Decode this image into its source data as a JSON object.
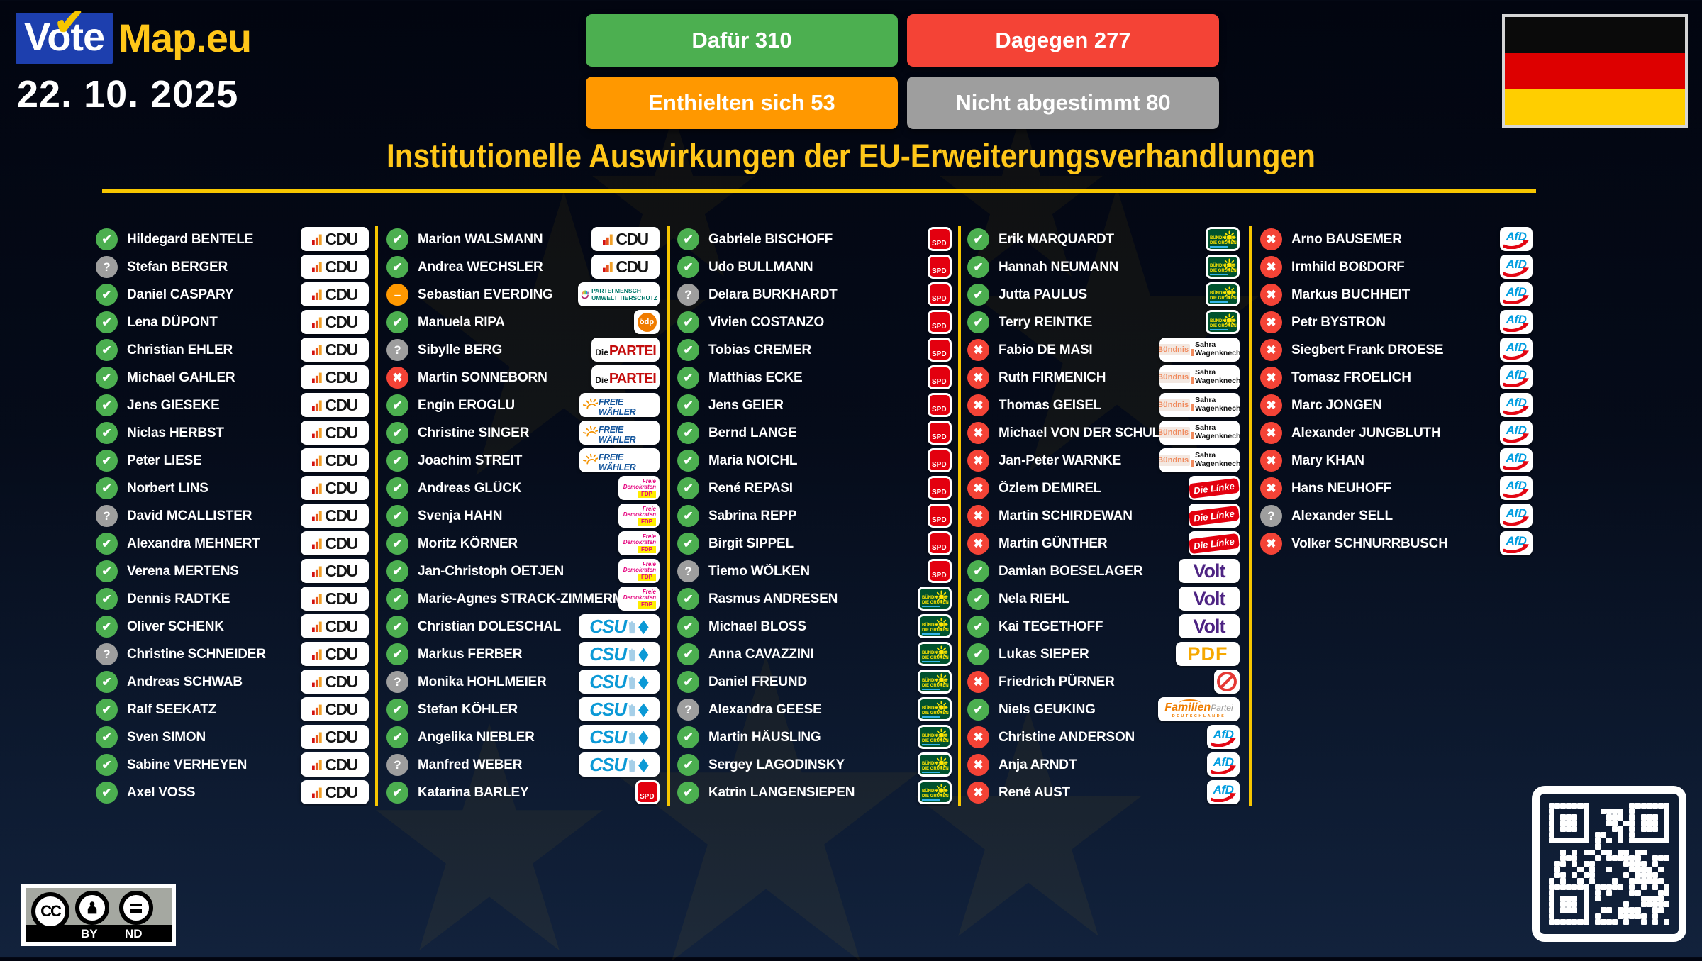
{
  "brand": {
    "blue_text": "Vote",
    "yellow_text": "Map.eu"
  },
  "date": "22. 10. 2025",
  "title": "Institutionelle Auswirkungen der EU-Erweiterungsverhandlungen",
  "summary": [
    {
      "label": "Dafür 310",
      "type": "yes"
    },
    {
      "label": "Dagegen 277",
      "type": "no"
    },
    {
      "label": "Enthielten sich 53",
      "type": "abstain"
    },
    {
      "label": "Nicht abgestimmt 80",
      "type": "novote"
    }
  ],
  "colors": {
    "accent_gold": "#f7c600",
    "vote_yes": "#4caf50",
    "vote_no": "#f44336",
    "vote_abstain": "#ff9800",
    "vote_unknown": "#9e9e9e",
    "flag_stripes": [
      "#0a0a0a",
      "#dd0000",
      "#ffce00"
    ]
  },
  "license": {
    "cc": "CC",
    "by": "BY",
    "nd": "ND"
  },
  "parties": {
    "CDU": {
      "text": "CDU"
    },
    "CSU": {
      "text": "CSU"
    },
    "SPD": {
      "text": "SPD"
    },
    "GRUENE": {
      "line1": "BÜNDNIS 90",
      "line2": "DIE GRÜNEN"
    },
    "AFD": {
      "text": "AfD"
    },
    "LINKE": {
      "text": "Die Línke"
    },
    "VOLT": {
      "text": "Volt"
    },
    "PDF": {
      "text": "PDF"
    },
    "FDP": {
      "line1": "Freie",
      "line2": "Demokraten",
      "text": "FDP"
    },
    "FW": {
      "text": "FREIE WÄHLER"
    },
    "PARTEI": {
      "prefix": "Die",
      "text": "PARTEI"
    },
    "TIERSCHUTZ": {
      "line1": "PARTEI MENSCH",
      "line2": "UMWELT TIERSCHUTZ"
    },
    "OEDP": {
      "text": "ödp"
    },
    "BSW": {
      "word": "Bündnis",
      "line1": "Sahra",
      "line2": "Wagenknecht"
    },
    "FAMILIE": {
      "text": "Familien",
      "suffix": "Partei",
      "sub": "DEUTSCHLANDS"
    },
    "NONE": {}
  },
  "columns": [
    [
      {
        "name": "Hildegard BENTELE",
        "vote": "yes",
        "party": "CDU"
      },
      {
        "name": "Stefan BERGER",
        "vote": "unknown",
        "party": "CDU"
      },
      {
        "name": "Daniel CASPARY",
        "vote": "yes",
        "party": "CDU"
      },
      {
        "name": "Lena DÜPONT",
        "vote": "yes",
        "party": "CDU"
      },
      {
        "name": "Christian EHLER",
        "vote": "yes",
        "party": "CDU"
      },
      {
        "name": "Michael GAHLER",
        "vote": "yes",
        "party": "CDU"
      },
      {
        "name": "Jens GIESEKE",
        "vote": "yes",
        "party": "CDU"
      },
      {
        "name": "Niclas HERBST",
        "vote": "yes",
        "party": "CDU"
      },
      {
        "name": "Peter LIESE",
        "vote": "yes",
        "party": "CDU"
      },
      {
        "name": "Norbert LINS",
        "vote": "yes",
        "party": "CDU"
      },
      {
        "name": "David MCALLISTER",
        "vote": "unknown",
        "party": "CDU"
      },
      {
        "name": "Alexandra MEHNERT",
        "vote": "yes",
        "party": "CDU"
      },
      {
        "name": "Verena MERTENS",
        "vote": "yes",
        "party": "CDU"
      },
      {
        "name": "Dennis RADTKE",
        "vote": "yes",
        "party": "CDU"
      },
      {
        "name": "Oliver SCHENK",
        "vote": "yes",
        "party": "CDU"
      },
      {
        "name": "Christine SCHNEIDER",
        "vote": "unknown",
        "party": "CDU"
      },
      {
        "name": "Andreas SCHWAB",
        "vote": "yes",
        "party": "CDU"
      },
      {
        "name": "Ralf SEEKATZ",
        "vote": "yes",
        "party": "CDU"
      },
      {
        "name": "Sven SIMON",
        "vote": "yes",
        "party": "CDU"
      },
      {
        "name": "Sabine VERHEYEN",
        "vote": "yes",
        "party": "CDU"
      },
      {
        "name": "Axel VOSS",
        "vote": "yes",
        "party": "CDU"
      }
    ],
    [
      {
        "name": "Marion WALSMANN",
        "vote": "yes",
        "party": "CDU"
      },
      {
        "name": "Andrea WECHSLER",
        "vote": "yes",
        "party": "CDU"
      },
      {
        "name": "Sebastian EVERDING",
        "vote": "abstain",
        "party": "TIERSCHUTZ"
      },
      {
        "name": "Manuela RIPA",
        "vote": "yes",
        "party": "OEDP"
      },
      {
        "name": "Sibylle BERG",
        "vote": "unknown",
        "party": "PARTEI"
      },
      {
        "name": "Martin SONNEBORN",
        "vote": "no",
        "party": "PARTEI"
      },
      {
        "name": "Engin EROGLU",
        "vote": "yes",
        "party": "FW"
      },
      {
        "name": "Christine SINGER",
        "vote": "yes",
        "party": "FW"
      },
      {
        "name": "Joachim STREIT",
        "vote": "yes",
        "party": "FW"
      },
      {
        "name": "Andreas GLÜCK",
        "vote": "yes",
        "party": "FDP"
      },
      {
        "name": "Svenja HAHN",
        "vote": "yes",
        "party": "FDP"
      },
      {
        "name": "Moritz KÖRNER",
        "vote": "yes",
        "party": "FDP"
      },
      {
        "name": "Jan-Christoph OETJEN",
        "vote": "yes",
        "party": "FDP"
      },
      {
        "name": "Marie-Agnes STRACK-ZIMMERMANN",
        "vote": "yes",
        "party": "FDP"
      },
      {
        "name": "Christian DOLESCHAL",
        "vote": "yes",
        "party": "CSU"
      },
      {
        "name": "Markus FERBER",
        "vote": "yes",
        "party": "CSU"
      },
      {
        "name": "Monika HOHLMEIER",
        "vote": "unknown",
        "party": "CSU"
      },
      {
        "name": "Stefan KÖHLER",
        "vote": "yes",
        "party": "CSU"
      },
      {
        "name": "Angelika NIEBLER",
        "vote": "yes",
        "party": "CSU"
      },
      {
        "name": "Manfred WEBER",
        "vote": "unknown",
        "party": "CSU"
      },
      {
        "name": "Katarina BARLEY",
        "vote": "yes",
        "party": "SPD"
      }
    ],
    [
      {
        "name": "Gabriele BISCHOFF",
        "vote": "yes",
        "party": "SPD"
      },
      {
        "name": "Udo BULLMANN",
        "vote": "yes",
        "party": "SPD"
      },
      {
        "name": "Delara BURKHARDT",
        "vote": "unknown",
        "party": "SPD"
      },
      {
        "name": "Vivien COSTANZO",
        "vote": "yes",
        "party": "SPD"
      },
      {
        "name": "Tobias CREMER",
        "vote": "yes",
        "party": "SPD"
      },
      {
        "name": "Matthias ECKE",
        "vote": "yes",
        "party": "SPD"
      },
      {
        "name": "Jens GEIER",
        "vote": "yes",
        "party": "SPD"
      },
      {
        "name": "Bernd LANGE",
        "vote": "yes",
        "party": "SPD"
      },
      {
        "name": "Maria NOICHL",
        "vote": "yes",
        "party": "SPD"
      },
      {
        "name": "René REPASI",
        "vote": "yes",
        "party": "SPD"
      },
      {
        "name": "Sabrina REPP",
        "vote": "yes",
        "party": "SPD"
      },
      {
        "name": "Birgit SIPPEL",
        "vote": "yes",
        "party": "SPD"
      },
      {
        "name": "Tiemo WÖLKEN",
        "vote": "unknown",
        "party": "SPD"
      },
      {
        "name": "Rasmus ANDRESEN",
        "vote": "yes",
        "party": "GRUENE"
      },
      {
        "name": "Michael BLOSS",
        "vote": "yes",
        "party": "GRUENE"
      },
      {
        "name": "Anna CAVAZZINI",
        "vote": "yes",
        "party": "GRUENE"
      },
      {
        "name": "Daniel FREUND",
        "vote": "yes",
        "party": "GRUENE"
      },
      {
        "name": "Alexandra GEESE",
        "vote": "unknown",
        "party": "GRUENE"
      },
      {
        "name": "Martin HÄUSLING",
        "vote": "yes",
        "party": "GRUENE"
      },
      {
        "name": "Sergey LAGODINSKY",
        "vote": "yes",
        "party": "GRUENE"
      },
      {
        "name": "Katrin LANGENSIEPEN",
        "vote": "yes",
        "party": "GRUENE"
      }
    ],
    [
      {
        "name": "Erik MARQUARDT",
        "vote": "yes",
        "party": "GRUENE"
      },
      {
        "name": "Hannah NEUMANN",
        "vote": "yes",
        "party": "GRUENE"
      },
      {
        "name": "Jutta PAULUS",
        "vote": "yes",
        "party": "GRUENE"
      },
      {
        "name": "Terry REINTKE",
        "vote": "yes",
        "party": "GRUENE"
      },
      {
        "name": "Fabio DE MASI",
        "vote": "no",
        "party": "BSW"
      },
      {
        "name": "Ruth FIRMENICH",
        "vote": "no",
        "party": "BSW"
      },
      {
        "name": "Thomas GEISEL",
        "vote": "no",
        "party": "BSW"
      },
      {
        "name": "Michael VON DER SCHULENBURG",
        "vote": "no",
        "party": "BSW"
      },
      {
        "name": "Jan-Peter WARNKE",
        "vote": "no",
        "party": "BSW"
      },
      {
        "name": "Özlem DEMIREL",
        "vote": "no",
        "party": "LINKE"
      },
      {
        "name": "Martin SCHIRDEWAN",
        "vote": "no",
        "party": "LINKE"
      },
      {
        "name": "Martin GÜNTHER",
        "vote": "no",
        "party": "LINKE"
      },
      {
        "name": "Damian BOESELAGER",
        "vote": "yes",
        "party": "VOLT"
      },
      {
        "name": "Nela RIEHL",
        "vote": "yes",
        "party": "VOLT"
      },
      {
        "name": "Kai TEGETHOFF",
        "vote": "yes",
        "party": "VOLT"
      },
      {
        "name": "Lukas SIEPER",
        "vote": "yes",
        "party": "PDF"
      },
      {
        "name": "Friedrich PÜRNER",
        "vote": "no",
        "party": "NONE"
      },
      {
        "name": "Niels GEUKING",
        "vote": "yes",
        "party": "FAMILIE"
      },
      {
        "name": "Christine ANDERSON",
        "vote": "no",
        "party": "AFD"
      },
      {
        "name": "Anja ARNDT",
        "vote": "no",
        "party": "AFD"
      },
      {
        "name": "René AUST",
        "vote": "no",
        "party": "AFD"
      }
    ],
    [
      {
        "name": "Arno BAUSEMER",
        "vote": "no",
        "party": "AFD"
      },
      {
        "name": "Irmhild BOßDORF",
        "vote": "no",
        "party": "AFD"
      },
      {
        "name": "Markus BUCHHEIT",
        "vote": "no",
        "party": "AFD"
      },
      {
        "name": "Petr BYSTRON",
        "vote": "no",
        "party": "AFD"
      },
      {
        "name": "Siegbert Frank DROESE",
        "vote": "no",
        "party": "AFD"
      },
      {
        "name": "Tomasz FROELICH",
        "vote": "no",
        "party": "AFD"
      },
      {
        "name": "Marc JONGEN",
        "vote": "no",
        "party": "AFD"
      },
      {
        "name": "Alexander JUNGBLUTH",
        "vote": "no",
        "party": "AFD"
      },
      {
        "name": "Mary KHAN",
        "vote": "no",
        "party": "AFD"
      },
      {
        "name": "Hans NEUHOFF",
        "vote": "no",
        "party": "AFD"
      },
      {
        "name": "Alexander SELL",
        "vote": "unknown",
        "party": "AFD"
      },
      {
        "name": "Volker SCHNURRBUSCH",
        "vote": "no",
        "party": "AFD"
      }
    ]
  ]
}
